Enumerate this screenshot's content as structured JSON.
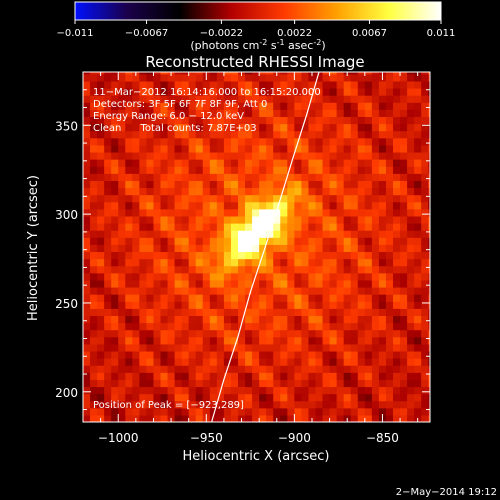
{
  "colorbar": {
    "ticks": [
      "-0.011",
      "-0.0067",
      "-0.0022",
      "0.0022",
      "0.0067",
      "0.011"
    ],
    "tick_values": [
      -0.011,
      -0.0067,
      -0.0022,
      0.0022,
      0.0067,
      0.011
    ],
    "range": [
      -0.011,
      0.011
    ],
    "unit_parts": [
      "(photons cm",
      "-2",
      " s",
      "-1",
      " asec",
      "-2",
      ")"
    ],
    "colors": [
      "#0010ff",
      "#1a004a",
      "#000000",
      "#b40000",
      "#ff3a00",
      "#ffa000",
      "#ffff40",
      "#ffffff"
    ]
  },
  "chart_data": {
    "type": "heatmap",
    "title": "Reconstructed RHESSI Image",
    "xlabel": "Heliocentric X (arcsec)",
    "ylabel": "Heliocentric Y (arcsec)",
    "xlim": [
      -1020,
      -823
    ],
    "ylim": [
      183,
      380
    ],
    "xticks": [
      -1000,
      -950,
      -900,
      -850
    ],
    "xtick_labels": [
      "−1000",
      "−950",
      "−900",
      "−850"
    ],
    "yticks": [
      200,
      250,
      300,
      350
    ],
    "ytick_labels": [
      "200",
      "250",
      "300",
      "350"
    ],
    "peak": {
      "x": -923,
      "y": 289,
      "value": 0.011
    },
    "limb_curve": {
      "x": [
        -947,
        -940,
        -932,
        -925,
        -917,
        -909,
        -901,
        -893,
        -886
      ],
      "y": [
        183,
        207,
        231,
        256,
        280,
        305,
        331,
        356,
        380
      ]
    },
    "info_lines": [
      "11−Mar−2012 16:14:16.000 to 16:15:20.000",
      "Detectors: 3F 5F 6F 7F 8F 9F, Att 0",
      "Energy Range: 6.0 − 12.0 keV",
      "Clean      Total counts: 7.87E+03"
    ],
    "peak_label": "Position of Peak = [−923,289]"
  },
  "footer": {
    "date": "2−May−2014 19:12"
  }
}
